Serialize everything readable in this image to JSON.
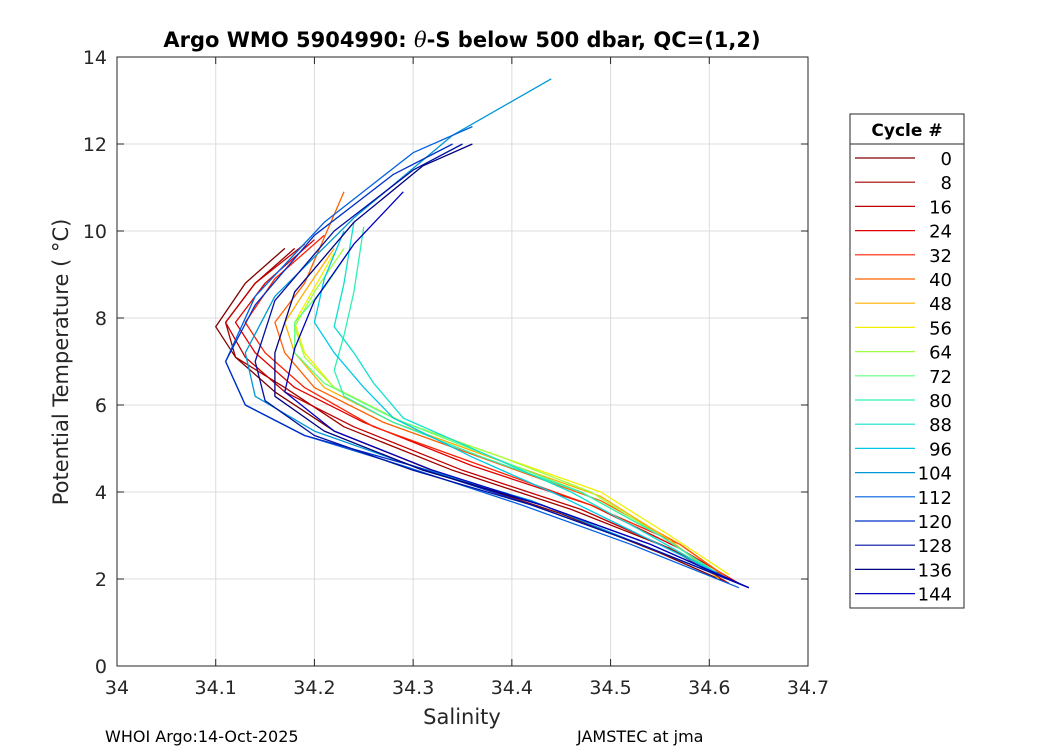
{
  "chart_data": {
    "type": "line",
    "title_prefix": "Argo WMO 5904990: ",
    "title_symbol": "θ",
    "title_suffix": "-S below 500 dbar,  QC=(1,2)",
    "xlabel": "Salinity",
    "ylabel": "Potential Temperature ( °C)",
    "xlim": [
      34.0,
      34.7
    ],
    "ylim": [
      0,
      14
    ],
    "xticks": [
      "34",
      "34.1",
      "34.2",
      "34.3",
      "34.4",
      "34.5",
      "34.6",
      "34.7"
    ],
    "yticks": [
      "0",
      "2",
      "4",
      "6",
      "8",
      "10",
      "12",
      "14"
    ],
    "grid": true,
    "legend": {
      "title": "Cycle #",
      "placement": "outside-right",
      "entries": [
        {
          "label": "0",
          "color": "#800000"
        },
        {
          "label": "8",
          "color": "#a00000"
        },
        {
          "label": "16",
          "color": "#c00000"
        },
        {
          "label": "24",
          "color": "#e00000"
        },
        {
          "label": "32",
          "color": "#ff2000"
        },
        {
          "label": "40",
          "color": "#ff6000"
        },
        {
          "label": "48",
          "color": "#ffb000"
        },
        {
          "label": "56",
          "color": "#f0f000"
        },
        {
          "label": "64",
          "color": "#a0ff40"
        },
        {
          "label": "72",
          "color": "#60ff80"
        },
        {
          "label": "80",
          "color": "#30f0b0"
        },
        {
          "label": "88",
          "color": "#10e0d0"
        },
        {
          "label": "96",
          "color": "#00c8e8"
        },
        {
          "label": "104",
          "color": "#0098d8"
        },
        {
          "label": "112",
          "color": "#0060e0"
        },
        {
          "label": "120",
          "color": "#0030c8"
        },
        {
          "label": "128",
          "color": "#0010a0"
        },
        {
          "label": "136",
          "color": "#000080"
        },
        {
          "label": "144",
          "color": "#0000c0"
        }
      ]
    },
    "series": [
      {
        "name": "0",
        "color": "#800000",
        "x": [
          34.62,
          34.55,
          34.45,
          34.33,
          34.22,
          34.16,
          34.12,
          34.1,
          34.13,
          34.17
        ],
        "y": [
          1.9,
          2.6,
          3.5,
          4.4,
          5.4,
          6.3,
          7.1,
          7.8,
          8.8,
          9.6
        ]
      },
      {
        "name": "8",
        "color": "#a00000",
        "x": [
          34.63,
          34.56,
          34.46,
          34.34,
          34.23,
          34.17,
          34.12,
          34.11,
          34.14,
          34.18
        ],
        "y": [
          1.9,
          2.7,
          3.6,
          4.5,
          5.5,
          6.4,
          7.1,
          7.9,
          8.8,
          9.6
        ]
      },
      {
        "name": "16",
        "color": "#c00000",
        "x": [
          34.62,
          34.56,
          34.47,
          34.35,
          34.24,
          34.17,
          34.13,
          34.11,
          34.14,
          34.19
        ],
        "y": [
          1.9,
          2.7,
          3.6,
          4.5,
          5.5,
          6.3,
          7.1,
          7.9,
          8.8,
          9.7
        ]
      },
      {
        "name": "24",
        "color": "#e00000",
        "x": [
          34.63,
          34.57,
          34.48,
          34.36,
          34.25,
          34.18,
          34.14,
          34.12,
          34.15,
          34.2
        ],
        "y": [
          1.9,
          2.7,
          3.7,
          4.6,
          5.6,
          6.4,
          7.2,
          7.9,
          8.8,
          9.8
        ]
      },
      {
        "name": "32",
        "color": "#ff2000",
        "x": [
          34.62,
          34.57,
          34.48,
          34.37,
          34.26,
          34.19,
          34.15,
          34.13,
          34.16,
          34.21
        ],
        "y": [
          2.0,
          2.8,
          3.7,
          4.6,
          5.5,
          6.4,
          7.2,
          7.9,
          8.9,
          9.9
        ]
      },
      {
        "name": "40",
        "color": "#ff6000",
        "x": [
          34.62,
          34.57,
          34.49,
          34.38,
          34.27,
          34.2,
          34.17,
          34.16,
          34.19,
          34.23
        ],
        "y": [
          2.0,
          2.8,
          3.8,
          4.7,
          5.6,
          6.4,
          7.2,
          7.9,
          8.8,
          10.9
        ]
      },
      {
        "name": "48",
        "color": "#ffb000",
        "x": [
          34.61,
          34.56,
          34.49,
          34.39,
          34.28,
          34.21,
          34.18,
          34.17,
          34.19,
          34.22
        ],
        "y": [
          2.0,
          2.9,
          3.9,
          4.7,
          5.6,
          6.4,
          7.2,
          7.9,
          8.6,
          9.6
        ]
      },
      {
        "name": "56",
        "color": "#f0f000",
        "x": [
          34.62,
          34.56,
          34.49,
          34.39,
          34.29,
          34.22,
          34.19,
          34.18,
          34.2,
          34.22
        ],
        "y": [
          2.1,
          3.0,
          4.0,
          4.8,
          5.6,
          6.4,
          7.2,
          7.9,
          8.7,
          9.5
        ]
      },
      {
        "name": "64",
        "color": "#a0ff40",
        "x": [
          34.61,
          34.55,
          34.48,
          34.39,
          34.29,
          34.22,
          34.19,
          34.18,
          34.2,
          34.23
        ],
        "y": [
          2.1,
          3.0,
          4.0,
          4.8,
          5.6,
          6.4,
          7.1,
          7.8,
          8.6,
          9.6
        ]
      },
      {
        "name": "72",
        "color": "#60ff80",
        "x": [
          34.61,
          34.55,
          34.47,
          34.38,
          34.28,
          34.21,
          34.18,
          34.18,
          34.21,
          34.24
        ],
        "y": [
          2.1,
          3.0,
          4.0,
          4.8,
          5.7,
          6.5,
          7.2,
          7.9,
          8.7,
          9.7
        ]
      },
      {
        "name": "80",
        "color": "#30f0b0",
        "x": [
          34.61,
          34.55,
          34.47,
          34.37,
          34.28,
          34.23,
          34.22,
          34.23,
          34.24,
          34.25
        ],
        "y": [
          2.1,
          3.0,
          4.0,
          4.8,
          5.6,
          6.2,
          6.8,
          7.6,
          8.6,
          10.1
        ]
      },
      {
        "name": "88",
        "color": "#10e0d0",
        "x": [
          34.61,
          34.54,
          34.46,
          34.37,
          34.29,
          34.26,
          34.24,
          34.22,
          34.23,
          34.24
        ],
        "y": [
          2.1,
          3.0,
          4.0,
          4.9,
          5.7,
          6.5,
          7.2,
          7.8,
          8.8,
          10.2
        ]
      },
      {
        "name": "96",
        "color": "#00c8e8",
        "x": [
          34.62,
          34.54,
          34.45,
          34.36,
          34.28,
          34.25,
          34.22,
          34.2,
          34.21,
          34.23
        ],
        "y": [
          2.0,
          2.9,
          3.9,
          4.8,
          5.7,
          6.4,
          7.2,
          7.9,
          8.9,
          10.0
        ]
      },
      {
        "name": "104",
        "color": "#0098d8",
        "x": [
          34.63,
          34.53,
          34.42,
          34.3,
          34.2,
          34.14,
          34.13,
          34.16,
          34.24,
          34.34,
          34.44
        ],
        "y": [
          1.9,
          2.8,
          3.8,
          4.6,
          5.4,
          6.2,
          7.2,
          8.5,
          10.3,
          12.2,
          13.5
        ]
      },
      {
        "name": "112",
        "color": "#0060e0",
        "x": [
          34.63,
          34.52,
          34.41,
          34.29,
          34.19,
          34.13,
          34.11,
          34.14,
          34.21,
          34.3,
          34.36
        ],
        "y": [
          1.8,
          2.8,
          3.7,
          4.6,
          5.3,
          6.0,
          7.0,
          8.5,
          10.2,
          11.8,
          12.4
        ]
      },
      {
        "name": "120",
        "color": "#0030c8",
        "x": [
          34.64,
          34.53,
          34.42,
          34.3,
          34.19,
          34.13,
          34.11,
          34.14,
          34.2,
          34.28,
          34.34
        ],
        "y": [
          1.8,
          2.8,
          3.7,
          4.6,
          5.3,
          6.0,
          7.0,
          8.3,
          9.9,
          11.3,
          12.0
        ]
      },
      {
        "name": "128",
        "color": "#0010a0",
        "x": [
          34.64,
          34.53,
          34.42,
          34.3,
          34.2,
          34.15,
          34.14,
          34.16,
          34.22,
          34.3,
          34.35
        ],
        "y": [
          1.8,
          2.8,
          3.7,
          4.5,
          5.3,
          6.1,
          7.0,
          8.4,
          10.0,
          11.4,
          12.0
        ]
      },
      {
        "name": "136",
        "color": "#000080",
        "x": [
          34.64,
          34.54,
          34.43,
          34.31,
          34.21,
          34.16,
          34.16,
          34.18,
          34.24,
          34.31,
          34.36
        ],
        "y": [
          1.8,
          2.8,
          3.7,
          4.5,
          5.4,
          6.2,
          7.2,
          8.6,
          10.2,
          11.5,
          12.0
        ]
      },
      {
        "name": "144",
        "color": "#0000c0",
        "x": [
          34.64,
          34.54,
          34.43,
          34.32,
          34.22,
          34.17,
          34.18,
          34.2,
          34.24,
          34.29
        ],
        "y": [
          1.8,
          2.8,
          3.7,
          4.5,
          5.4,
          6.3,
          7.3,
          8.4,
          9.7,
          10.9
        ]
      }
    ]
  },
  "footer": {
    "left": "WHOI Argo:14-Oct-2025",
    "right": "JAMSTEC at jma"
  }
}
